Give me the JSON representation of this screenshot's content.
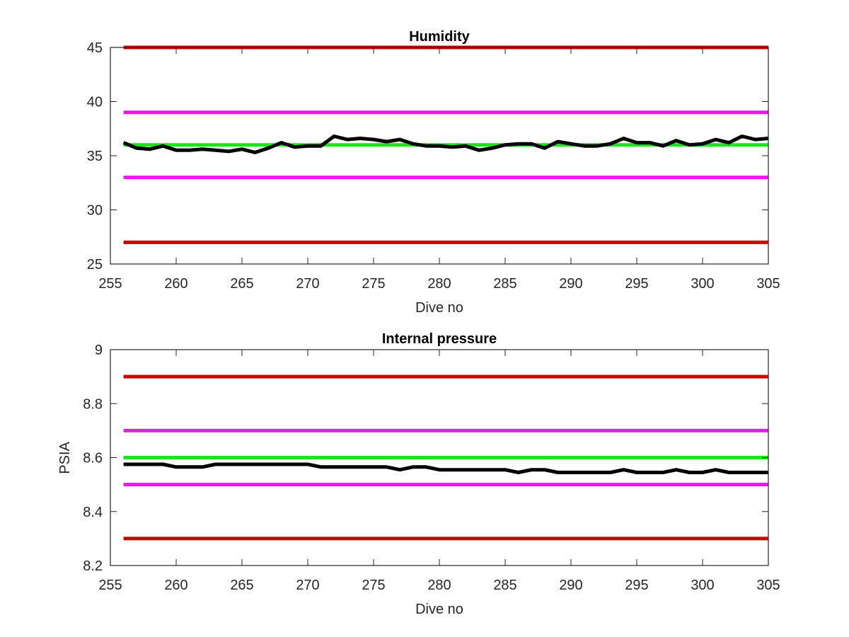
{
  "chart_data": [
    {
      "type": "line",
      "title": "Humidity",
      "xlabel": "Dive no",
      "ylabel": "",
      "xlim": [
        255,
        305
      ],
      "ylim": [
        25,
        45
      ],
      "xticks": [
        255,
        260,
        265,
        270,
        275,
        280,
        285,
        290,
        295,
        300,
        305
      ],
      "yticks": [
        25,
        30,
        35,
        40,
        45
      ],
      "grid": false,
      "legend": "none",
      "reference_lines": [
        {
          "y": 45,
          "color": "#cc0000"
        },
        {
          "y": 39,
          "color": "#e619e6"
        },
        {
          "y": 36,
          "color": "#19e619"
        },
        {
          "y": 33,
          "color": "#e619e6"
        },
        {
          "y": 27,
          "color": "#cc0000"
        }
      ],
      "series": [
        {
          "color": "#000000",
          "x": [
            256,
            257,
            258,
            259,
            260,
            261,
            262,
            263,
            264,
            265,
            266,
            267,
            268,
            269,
            270,
            271,
            272,
            273,
            274,
            275,
            276,
            277,
            278,
            279,
            280,
            281,
            282,
            283,
            284,
            285,
            286,
            287,
            288,
            289,
            290,
            291,
            292,
            293,
            294,
            295,
            296,
            297,
            298,
            299,
            300,
            301,
            302,
            303,
            304,
            305
          ],
          "y": [
            36.2,
            35.7,
            35.6,
            35.9,
            35.5,
            35.5,
            35.6,
            35.5,
            35.4,
            35.6,
            35.3,
            35.7,
            36.2,
            35.8,
            35.9,
            35.9,
            36.8,
            36.5,
            36.6,
            36.5,
            36.3,
            36.5,
            36.1,
            35.9,
            35.9,
            35.8,
            35.9,
            35.5,
            35.7,
            36.0,
            36.1,
            36.1,
            35.7,
            36.3,
            36.1,
            35.9,
            35.9,
            36.1,
            36.6,
            36.2,
            36.2,
            35.9,
            36.4,
            36.0,
            36.1,
            36.5,
            36.2,
            36.8,
            36.5,
            36.6
          ]
        }
      ]
    },
    {
      "type": "line",
      "title": "Internal pressure",
      "xlabel": "Dive no",
      "ylabel": "PSIA",
      "xlim": [
        255,
        305
      ],
      "ylim": [
        8.2,
        9.0
      ],
      "xticks": [
        255,
        260,
        265,
        270,
        275,
        280,
        285,
        290,
        295,
        300,
        305
      ],
      "yticks": [
        8.2,
        8.4,
        8.6,
        8.8,
        9.0
      ],
      "ytick_labels": [
        "8.2",
        "8.4",
        "8.6",
        "8.8",
        "9"
      ],
      "grid": false,
      "legend": "none",
      "reference_lines": [
        {
          "y": 8.9,
          "color": "#cc0000"
        },
        {
          "y": 8.7,
          "color": "#e619e6"
        },
        {
          "y": 8.6,
          "color": "#19e619"
        },
        {
          "y": 8.5,
          "color": "#e619e6"
        },
        {
          "y": 8.3,
          "color": "#cc0000"
        }
      ],
      "series": [
        {
          "color": "#000000",
          "x": [
            256,
            257,
            258,
            259,
            260,
            261,
            262,
            263,
            264,
            265,
            266,
            267,
            268,
            269,
            270,
            271,
            272,
            273,
            274,
            275,
            276,
            277,
            278,
            279,
            280,
            281,
            282,
            283,
            284,
            285,
            286,
            287,
            288,
            289,
            290,
            291,
            292,
            293,
            294,
            295,
            296,
            297,
            298,
            299,
            300,
            301,
            302,
            303,
            304,
            305
          ],
          "y": [
            8.575,
            8.575,
            8.575,
            8.575,
            8.565,
            8.565,
            8.565,
            8.575,
            8.575,
            8.575,
            8.575,
            8.575,
            8.575,
            8.575,
            8.575,
            8.565,
            8.565,
            8.565,
            8.565,
            8.565,
            8.565,
            8.555,
            8.565,
            8.565,
            8.555,
            8.555,
            8.555,
            8.555,
            8.555,
            8.555,
            8.545,
            8.555,
            8.555,
            8.545,
            8.545,
            8.545,
            8.545,
            8.545,
            8.555,
            8.545,
            8.545,
            8.545,
            8.555,
            8.545,
            8.545,
            8.555,
            8.545,
            8.545,
            8.545,
            8.545
          ]
        }
      ]
    }
  ]
}
